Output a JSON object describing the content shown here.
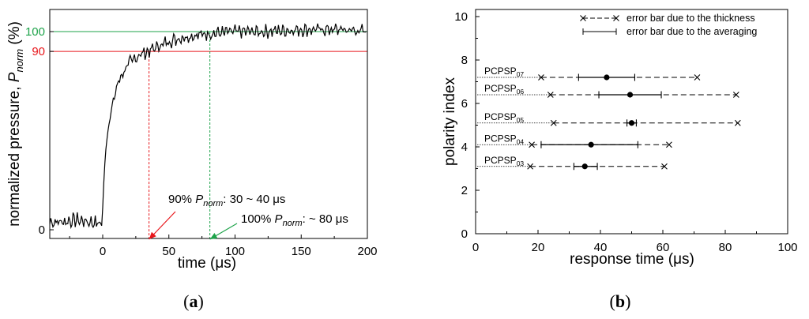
{
  "chart_data": [
    {
      "panel": "a",
      "type": "line",
      "title": "",
      "xlabel": "time (μs)",
      "ylabel": "normalized pressure, P_norm (%)",
      "xlim": [
        -40,
        200
      ],
      "xticks": [
        0,
        50,
        100,
        150,
        200
      ],
      "ytick_labels": [
        {
          "value": 0,
          "label": "0",
          "color": "#000000"
        },
        {
          "value": 90,
          "label": "90",
          "color": "#e8161b"
        },
        {
          "value": 100,
          "label": "100",
          "color": "#1ea34a"
        }
      ],
      "series": [
        {
          "name": "normalized pressure",
          "x": [
            -40,
            -30,
            -20,
            -10,
            -1,
            0,
            2,
            5,
            8,
            12,
            16,
            20,
            25,
            30,
            35,
            40,
            50,
            60,
            70,
            80,
            100,
            120,
            150,
            180,
            200
          ],
          "y": [
            4,
            4,
            5,
            4,
            3,
            10,
            40,
            55,
            65,
            75,
            80,
            84,
            87,
            89,
            90,
            92,
            95,
            97,
            98,
            99,
            100,
            100,
            101,
            101,
            100
          ]
        }
      ],
      "reference_lines": [
        {
          "label": "90",
          "y": 90,
          "color": "#e8161b"
        },
        {
          "label": "100",
          "y": 100,
          "color": "#1ea34a"
        }
      ],
      "marker_lines": [
        {
          "x": 35,
          "color": "#e8161b"
        },
        {
          "x": 81,
          "color": "#1ea34a"
        }
      ],
      "annotations": [
        {
          "prefix": "90% ",
          "symbol": "P",
          "sub": "norm",
          "suffix": ": 30 ~ 40 μs",
          "target_x": 35,
          "color": "#e8161b"
        },
        {
          "prefix": "100% ",
          "symbol": "P",
          "sub": "norm",
          "suffix": ": ~ 80 μs",
          "target_x": 81,
          "color": "#1ea34a"
        }
      ],
      "panel_label": "a"
    },
    {
      "panel": "b",
      "type": "scatter",
      "title": "",
      "xlabel": "response time (μs)",
      "ylabel": "polarity index",
      "xlim": [
        0,
        100
      ],
      "ylim": [
        0,
        10
      ],
      "xticks": [
        0,
        20,
        40,
        60,
        80,
        100
      ],
      "yticks": [
        0,
        2,
        4,
        6,
        8,
        10
      ],
      "legend": [
        {
          "label": "error bar due to the thickness",
          "style": "dashed-x"
        },
        {
          "label": "error bar due to the averaging",
          "style": "solid-bar"
        }
      ],
      "legend_position": "top-right",
      "points": [
        {
          "name": "PCPSP",
          "sub": "07",
          "y": 7.2,
          "x": 42,
          "thick": [
            21,
            71
          ],
          "avg": [
            33,
            51
          ]
        },
        {
          "name": "PCPSP",
          "sub": "06",
          "y": 6.4,
          "x": 49.5,
          "thick": [
            24,
            83.5
          ],
          "avg": [
            39.5,
            59.5
          ]
        },
        {
          "name": "PCPSP",
          "sub": "05",
          "y": 5.1,
          "x": 50,
          "thick": [
            25,
            84
          ],
          "avg": [
            48.5,
            51.5
          ]
        },
        {
          "name": "PCPSP",
          "sub": "04",
          "y": 4.1,
          "x": 37,
          "thick": [
            18,
            62
          ],
          "avg": [
            21,
            52
          ]
        },
        {
          "name": "PCPSP",
          "sub": "03",
          "y": 3.1,
          "x": 35,
          "thick": [
            17.5,
            60.5
          ],
          "avg": [
            31.5,
            39
          ]
        }
      ],
      "panel_label": "b"
    }
  ]
}
